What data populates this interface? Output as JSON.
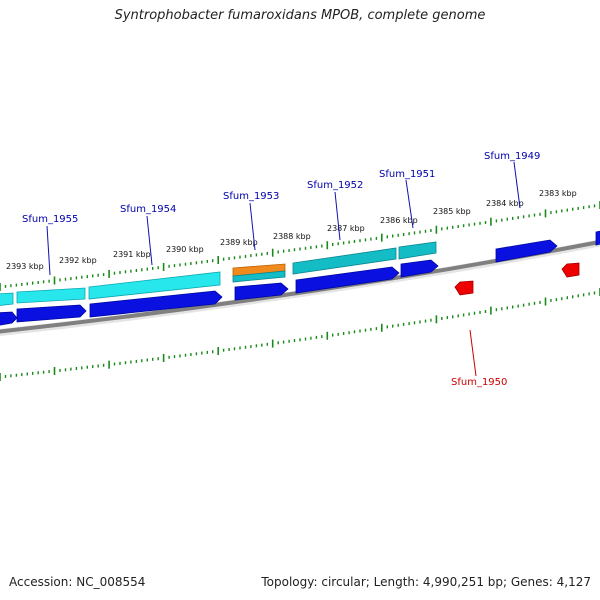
{
  "title": "Syntrophobacter fumaroxidans MPOB, complete genome",
  "footer": {
    "accession": "Accession: NC_008554",
    "summary": "Topology: circular; Length: 4,990,251 bp; Genes: 4,127"
  },
  "colors": {
    "forward_gene": "#0a10e0",
    "reverse_gene": "#ee0000",
    "cds_light": "#27e6ec",
    "cds_teal": "#14bcc6",
    "rna": "#f08a1c",
    "backbone": "#808080",
    "tick": "#1a8a1a",
    "label_forward": "#0000aa",
    "label_reverse": "#cc0000"
  },
  "scale_labels": [
    "2393 kbp",
    "2392 kbp",
    "2391 kbp",
    "2390 kbp",
    "2389 kbp",
    "2388 kbp",
    "2387 kbp",
    "2386 kbp",
    "2385 kbp",
    "2384 kbp",
    "2383 kbp"
  ],
  "gene_labels": {
    "g1955": "Sfum_1955",
    "g1954": "Sfum_1954",
    "g1953": "Sfum_1953",
    "g1952": "Sfum_1952",
    "g1951": "Sfum_1951",
    "g1949": "Sfum_1949",
    "g1950": "Sfum_1950"
  }
}
